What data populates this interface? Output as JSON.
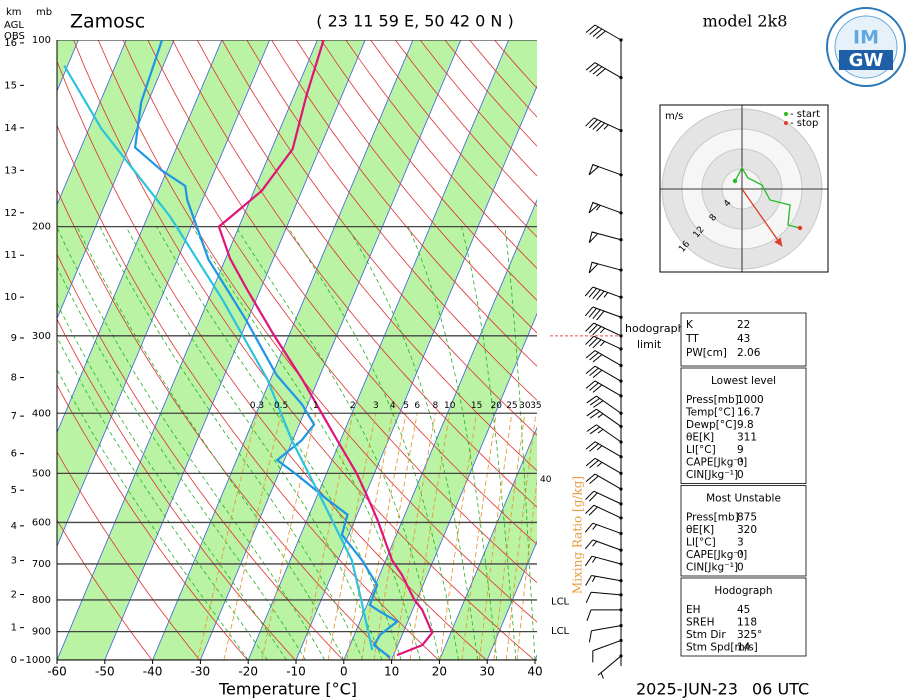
{
  "chart_data": {
    "type": "skewt",
    "title": "Zamosc",
    "location": "( 23 11 59 E, 50 42 0 N )",
    "model": "model 2k8",
    "date": "2025-JUN-23",
    "time": "06 UTC",
    "xlabel": "Temperature [°C]",
    "xlim": [
      -60,
      40
    ],
    "xticks": [
      -60,
      -50,
      -40,
      -30,
      -20,
      -10,
      0,
      10,
      20,
      30,
      40
    ],
    "ylim": [
      1000,
      100
    ],
    "yticks": [
      100,
      200,
      300,
      400,
      500,
      600,
      700,
      800,
      900,
      1000
    ],
    "log_y": true,
    "y_unit": "mb",
    "km_unit": "km",
    "km_ref": [
      "AGL",
      "OBS"
    ],
    "km_ticks": [
      0,
      1,
      2,
      3,
      4,
      5,
      6,
      7,
      8,
      9,
      10,
      11,
      12,
      13,
      14,
      15,
      16
    ],
    "series": [
      {
        "color": "#e0147a",
        "pressure": [
          982,
          946,
          904,
          830,
          800,
          729,
          690,
          594,
          542,
          500,
          442,
          395,
          353,
          299,
          253,
          225,
          200,
          192,
          175,
          150,
          123,
          100
        ],
        "values": [
          10.7,
          15.1,
          16.1,
          12.0,
          9.5,
          4.7,
          1.3,
          -5.3,
          -9.7,
          -13.7,
          -20.7,
          -27.0,
          -33.3,
          -43.2,
          -52.7,
          -59.1,
          -64.2,
          -62.4,
          -58.4,
          -55.6,
          -57.4,
          -58.7
        ]
      },
      {
        "color": "#1e96e6",
        "pressure": [
          990,
          946,
          910,
          867,
          836,
          815,
          757,
          690,
          628,
          583,
          546,
          503,
          476,
          442,
          417,
          387,
          347,
          283,
          226,
          181,
          172,
          162,
          149,
          126,
          100
        ],
        "values": [
          9.4,
          5.0,
          5.4,
          7.8,
          3.4,
          0.6,
          0.4,
          -5.0,
          -11.4,
          -12.0,
          -18.4,
          -26.0,
          -31.5,
          -28.1,
          -26.9,
          -31.2,
          -39.1,
          -50.3,
          -63.5,
          -73.2,
          -74.8,
          -81.3,
          -88.7,
          -91.4,
          -92.5
        ]
      },
      {
        "color": "#2cc4dc",
        "pressure": [
          964,
          803,
          690,
          552,
          442,
          353,
          262,
          193,
          139,
          110
        ],
        "values": [
          5.1,
          -1.5,
          -7.1,
          -18.6,
          -30.2,
          -40.6,
          -57.1,
          -75.2,
          -97.4,
          -110.7
        ]
      }
    ],
    "mixing_ratio": {
      "label": "Mixing Ratio [g/kg]",
      "color": "#e89a3c",
      "top": 400,
      "values": [
        0.3,
        0.5,
        1,
        2,
        3,
        4,
        5,
        6,
        8,
        10,
        15,
        20,
        25,
        30,
        35,
        40
      ]
    },
    "lcl": [
      {
        "label": "LCL",
        "pressure": 805
      },
      {
        "label": "LCL",
        "pressure": 898
      }
    ],
    "hodograph_limit": {
      "pressure": 300,
      "label": [
        "hodograph",
        "limit"
      ]
    },
    "winds": {
      "pressure": [
        100,
        115,
        140,
        165,
        190,
        210,
        235,
        260,
        280,
        300,
        315,
        335,
        355,
        375,
        400,
        420,
        445,
        470,
        500,
        530,
        560,
        590,
        625,
        665,
        700,
        745,
        785,
        830,
        880,
        930,
        985
      ],
      "direction": [
        300,
        300,
        295,
        290,
        290,
        285,
        285,
        290,
        290,
        295,
        295,
        300,
        300,
        300,
        305,
        305,
        305,
        300,
        300,
        300,
        295,
        295,
        290,
        290,
        285,
        280,
        275,
        270,
        260,
        250,
        230
      ],
      "speed": [
        40,
        40,
        45,
        50,
        55,
        50,
        50,
        45,
        40,
        35,
        35,
        30,
        30,
        30,
        30,
        25,
        25,
        25,
        25,
        20,
        20,
        20,
        15,
        15,
        15,
        15,
        10,
        10,
        10,
        10,
        5
      ]
    },
    "hodograph": {
      "unit": "m/s",
      "start_label": "- start",
      "stop_label": "- stop",
      "start_color": "#22bb22",
      "stop_color": "#e03c28",
      "color": "#22bb22",
      "motion_color": "#e03c28",
      "rings": [
        4,
        8,
        12,
        16
      ],
      "u": [
        -1.4,
        0,
        1.2,
        4,
        5.6,
        9.6,
        9.2,
        11.6
      ],
      "v": [
        1.6,
        4.2,
        2.2,
        0.8,
        -2.2,
        -3.2,
        -7.2,
        -7.8
      ]
    }
  },
  "indices": {
    "basic": [
      {
        "label": "K",
        "value": 22
      },
      {
        "label": "TT",
        "value": 43
      },
      {
        "label": "PW[cm]",
        "value": 2.06
      }
    ],
    "sections": [
      {
        "title": "Lowest level",
        "rows": [
          {
            "label": "Press[mb]",
            "value": 1000
          },
          {
            "label": "Temp[°C]",
            "value": 16.7
          },
          {
            "label": "Dewp[°C]",
            "value": 9.8
          },
          {
            "label": "θE[K]",
            "value": 311
          },
          {
            "label": "LI[°C]",
            "value": 9
          },
          {
            "label": "CAPE[Jkg⁻¹]",
            "value": 0
          },
          {
            "label": "CIN[Jkg⁻¹]",
            "value": 0
          }
        ]
      },
      {
        "title": "Most Unstable",
        "rows": [
          {
            "label": "Press[mb]",
            "value": 875
          },
          {
            "label": "θE[K]",
            "value": 320
          },
          {
            "label": "LI[°C]",
            "value": 3
          },
          {
            "label": "CAPE[Jkg⁻¹]",
            "value": 0
          },
          {
            "label": "CIN[Jkg⁻¹]",
            "value": 0
          }
        ]
      },
      {
        "title": "Hodograph",
        "rows": [
          {
            "label": "EH",
            "value": 45
          },
          {
            "label": "SREH",
            "value": 118
          },
          {
            "label": "Stm Dir",
            "value": 325,
            "value_label": "325°"
          },
          {
            "label": "Stm Spd[m/s]",
            "value": 14
          }
        ]
      }
    ]
  },
  "logo": {
    "text": [
      "IM",
      "GW"
    ]
  }
}
